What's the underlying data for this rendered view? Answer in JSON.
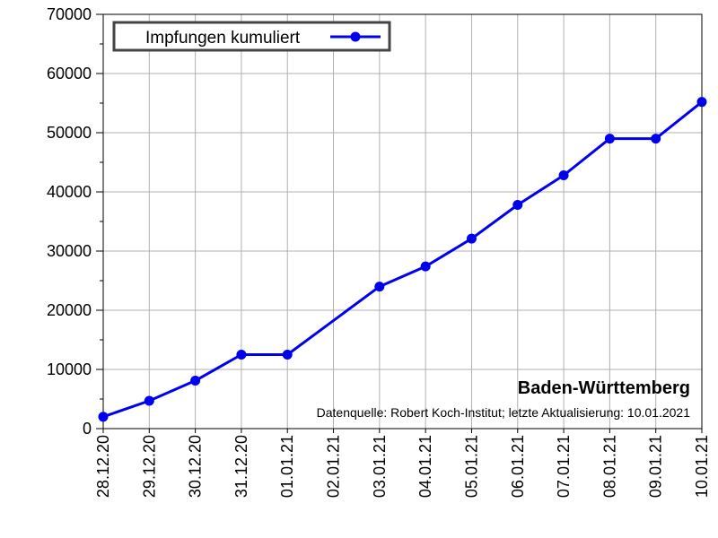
{
  "chart_data": {
    "type": "line",
    "title": "Baden-Württemberg",
    "source": "Datenquelle: Robert Koch-Institut; letzte Aktualisierung: 10.01.2021",
    "legend": {
      "label": "Impfungen kumuliert",
      "placement": "top-left"
    },
    "x": [
      "28.12.20",
      "29.12.20",
      "30.12.20",
      "31.12.20",
      "01.01.21",
      "02.01.21",
      "03.01.21",
      "04.01.21",
      "05.01.21",
      "06.01.21",
      "07.01.21",
      "08.01.21",
      "09.01.21",
      "10.01.21"
    ],
    "series": [
      {
        "name": "Impfungen kumuliert",
        "color": "#0000ee",
        "points": [
          {
            "x": "28.12.20",
            "y": 2000
          },
          {
            "x": "29.12.20",
            "y": 4700
          },
          {
            "x": "30.12.20",
            "y": 8100
          },
          {
            "x": "31.12.20",
            "y": 12500
          },
          {
            "x": "01.01.21",
            "y": 12500
          },
          {
            "x": "03.01.21",
            "y": 24000
          },
          {
            "x": "04.01.21",
            "y": 27400
          },
          {
            "x": "05.01.21",
            "y": 32100
          },
          {
            "x": "06.01.21",
            "y": 37800
          },
          {
            "x": "07.01.21",
            "y": 42800
          },
          {
            "x": "08.01.21",
            "y": 49000
          },
          {
            "x": "09.01.21",
            "y": 49000
          },
          {
            "x": "10.01.21",
            "y": 55200
          }
        ]
      }
    ],
    "ylim": [
      0,
      70000
    ],
    "yticks": [
      "0",
      "10000",
      "20000",
      "30000",
      "40000",
      "50000",
      "60000",
      "70000"
    ],
    "grid": true
  }
}
